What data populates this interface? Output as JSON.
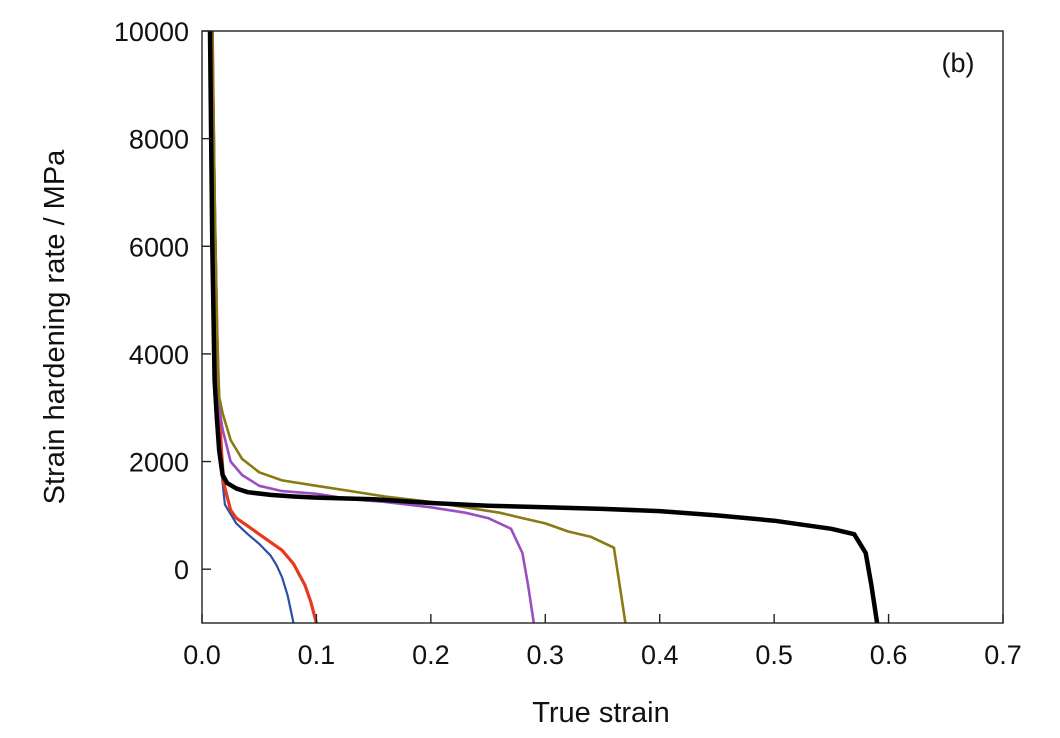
{
  "chart_data": {
    "type": "line",
    "title": "",
    "panel_label": "(b)",
    "xlabel": "True strain",
    "ylabel": "Strain hardening rate / MPa",
    "xlim": [
      0.0,
      0.7
    ],
    "ylim": [
      -1000,
      10000
    ],
    "x_ticks": [
      0.0,
      0.1,
      0.2,
      0.3,
      0.4,
      0.5,
      0.6,
      0.7
    ],
    "x_tick_labels": [
      "0.0",
      "0.1",
      "0.2",
      "0.3",
      "0.4",
      "0.5",
      "0.6",
      "0.7"
    ],
    "y_ticks": [
      0,
      2000,
      4000,
      6000,
      8000,
      10000
    ],
    "y_tick_labels": [
      "0",
      "2000",
      "4000",
      "6000",
      "8000",
      "10000"
    ],
    "grid": false,
    "legend": "none",
    "series": [
      {
        "color": "#2a4fa8",
        "x": [
          0.009,
          0.011,
          0.014,
          0.017,
          0.02,
          0.03,
          0.04,
          0.05,
          0.06,
          0.065,
          0.07,
          0.075,
          0.08
        ],
        "y": [
          10000,
          6000,
          3000,
          1800,
          1200,
          850,
          650,
          470,
          250,
          80,
          -150,
          -500,
          -1000
        ]
      },
      {
        "color": "#e8381e",
        "x": [
          0.009,
          0.011,
          0.014,
          0.017,
          0.019,
          0.025,
          0.03,
          0.04,
          0.05,
          0.06,
          0.07,
          0.08,
          0.085,
          0.09,
          0.095,
          0.1
        ],
        "y": [
          10000,
          6500,
          3500,
          2200,
          1600,
          1100,
          950,
          800,
          650,
          500,
          350,
          100,
          -100,
          -300,
          -600,
          -1000
        ]
      },
      {
        "color": "#9a4fc0",
        "x": [
          0.009,
          0.011,
          0.013,
          0.015,
          0.018,
          0.025,
          0.035,
          0.05,
          0.07,
          0.1,
          0.13,
          0.16,
          0.2,
          0.23,
          0.25,
          0.27,
          0.28,
          0.285,
          0.29
        ],
        "y": [
          10000,
          7000,
          4500,
          3000,
          2600,
          2000,
          1750,
          1550,
          1450,
          1400,
          1300,
          1250,
          1150,
          1050,
          950,
          750,
          300,
          -300,
          -1000
        ]
      },
      {
        "color": "#8a7a12",
        "x": [
          0.009,
          0.011,
          0.013,
          0.015,
          0.018,
          0.025,
          0.035,
          0.05,
          0.07,
          0.1,
          0.13,
          0.16,
          0.2,
          0.23,
          0.26,
          0.28,
          0.3,
          0.32,
          0.34,
          0.36,
          0.365,
          0.37
        ],
        "y": [
          10000,
          7000,
          4500,
          3200,
          2900,
          2400,
          2050,
          1800,
          1650,
          1550,
          1450,
          1350,
          1250,
          1150,
          1050,
          950,
          850,
          700,
          600,
          400,
          -300,
          -1000
        ]
      },
      {
        "color": "#000000",
        "x": [
          0.007,
          0.009,
          0.011,
          0.013,
          0.015,
          0.018,
          0.022,
          0.03,
          0.04,
          0.06,
          0.08,
          0.1,
          0.15,
          0.2,
          0.25,
          0.3,
          0.35,
          0.4,
          0.45,
          0.5,
          0.55,
          0.57,
          0.58,
          0.585,
          0.59
        ],
        "y": [
          10000,
          6000,
          3500,
          2800,
          2200,
          1750,
          1600,
          1500,
          1430,
          1380,
          1350,
          1330,
          1300,
          1230,
          1180,
          1150,
          1120,
          1080,
          1000,
          900,
          750,
          650,
          300,
          -300,
          -1000
        ]
      }
    ]
  }
}
